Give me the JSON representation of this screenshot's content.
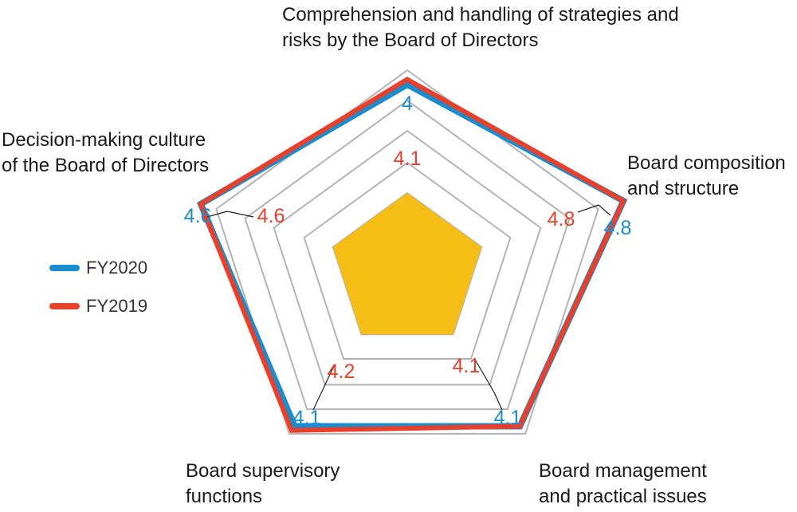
{
  "chart_data": {
    "type": "radar",
    "axes": [
      {
        "label": [
          "Comprehension and handling of strategies and",
          "risks by the Board of Directors"
        ]
      },
      {
        "label": [
          "Board composition",
          "and structure"
        ]
      },
      {
        "label": [
          "Board management",
          "and practical issues"
        ]
      },
      {
        "label": [
          "Board supervisory",
          "functions"
        ]
      },
      {
        "label": [
          "Decision-making culture",
          "of the Board of Directors"
        ]
      }
    ],
    "series": [
      {
        "name": "FY2020",
        "color": "#1b8ccd",
        "values": [
          4.0,
          4.8,
          4.1,
          4.1,
          4.6
        ]
      },
      {
        "name": "FY2019",
        "color": "#e8402b",
        "values": [
          4.1,
          4.8,
          4.1,
          4.2,
          4.6
        ]
      }
    ],
    "value_labels": {
      "FY2020": [
        "4",
        "4.8",
        "4.1",
        "4.1",
        "4.6"
      ],
      "FY2019": [
        "4.1",
        "4.8",
        "4.1",
        "4.2",
        "4.6"
      ]
    },
    "center_fill_color": "#f5bd16",
    "grid_color": "#b3b3b3"
  }
}
